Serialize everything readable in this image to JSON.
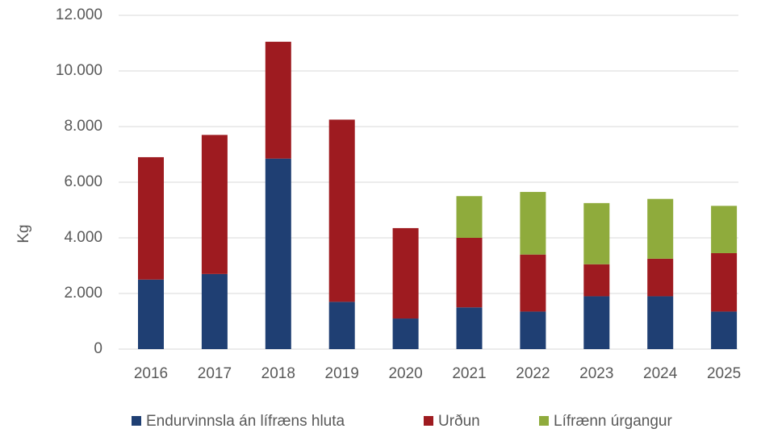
{
  "chart_data": {
    "type": "stacked_bar",
    "y_label": "Kg",
    "categories": [
      "2016",
      "2017",
      "2018",
      "2019",
      "2020",
      "2021",
      "2022",
      "2023",
      "2024",
      "2025"
    ],
    "series": [
      {
        "name": "Endurvinnsla án lífræns hluta",
        "color": "#1f3f73",
        "values": [
          2500,
          2700,
          6850,
          1700,
          1100,
          1500,
          1350,
          1900,
          1900,
          1350
        ]
      },
      {
        "name": "Urðun",
        "color": "#9e1b20",
        "values": [
          4400,
          5000,
          4200,
          6550,
          3250,
          2500,
          2050,
          1150,
          1350,
          2100
        ]
      },
      {
        "name": "Lífrænn úrgangur",
        "color": "#8fab3c",
        "values": [
          null,
          null,
          null,
          null,
          null,
          1500,
          2250,
          2200,
          2150,
          1700
        ]
      }
    ],
    "ylim": [
      0,
      12000
    ],
    "yticks": [
      0,
      {
        "value": 2000,
        "label": "2.000"
      },
      {
        "value": 4000,
        "label": "4.000"
      },
      {
        "value": 6000,
        "label": "6.000"
      },
      {
        "value": 8000,
        "label": "8.000"
      },
      {
        "value": 10000,
        "label": "10.000"
      },
      {
        "value": 12000,
        "label": "12.000"
      }
    ],
    "grid": true,
    "legend": "bottom"
  }
}
